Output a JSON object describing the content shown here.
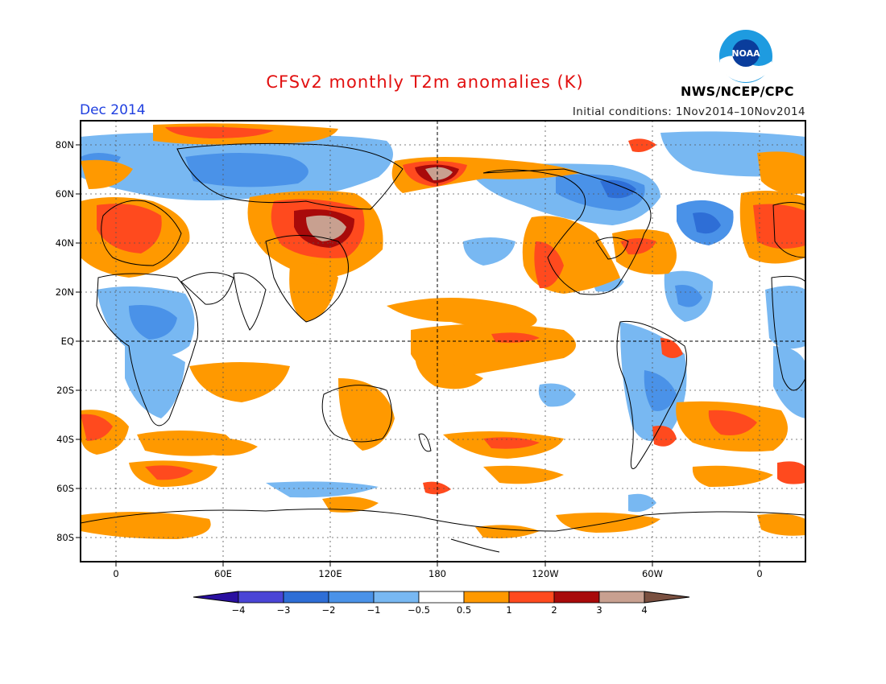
{
  "header": {
    "title": "CFSv2 monthly T2m anomalies (K)",
    "period": "Dec 2014",
    "initial_conditions": "Initial conditions: 1Nov2014–10Nov2014",
    "agency": "NWS/NCEP/CPC",
    "logo_text": "NOAA"
  },
  "map": {
    "lat_labels": [
      "80N",
      "60N",
      "40N",
      "20N",
      "EQ",
      "20S",
      "40S",
      "60S",
      "80S"
    ],
    "lon_labels": [
      "0",
      "60E",
      "120E",
      "180",
      "120W",
      "60W",
      "0"
    ]
  },
  "legend": {
    "ticks": [
      "−4",
      "−3",
      "−2",
      "−1",
      "−0.5",
      "0.5",
      "1",
      "2",
      "3",
      "4"
    ],
    "colors": [
      "#2a10a0",
      "#4a45d6",
      "#2e6ed6",
      "#4a92e8",
      "#78b8f2",
      "#ffffff",
      "#ff9900",
      "#ff4a1e",
      "#a80a0a",
      "#c8a090",
      "#7a5040"
    ],
    "units": "K"
  }
}
